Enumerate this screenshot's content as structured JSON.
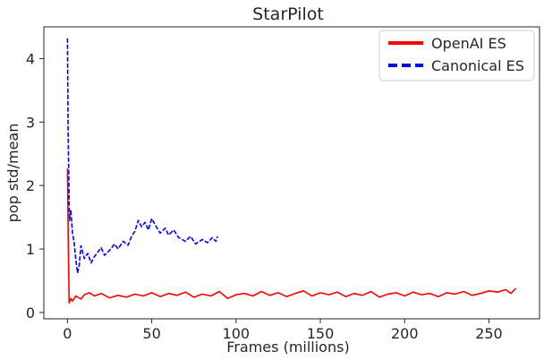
{
  "chart_data": {
    "type": "line",
    "title": "StarPilot",
    "xlabel": "Frames (millions)",
    "ylabel": "pop std/mean",
    "xlim": [
      -14,
      280
    ],
    "ylim": [
      -0.1,
      4.5
    ],
    "xticks": [
      0,
      50,
      100,
      150,
      200,
      250
    ],
    "yticks": [
      0,
      1,
      2,
      3,
      4
    ],
    "grid": false,
    "legend_position": "top-right",
    "series": [
      {
        "name": "OpenAI ES",
        "color": "#ff0000",
        "dash": "solid",
        "x": [
          0,
          0.3,
          0.6,
          1,
          2,
          3,
          5,
          8,
          10,
          13,
          16,
          20,
          25,
          30,
          35,
          40,
          45,
          50,
          55,
          60,
          65,
          70,
          75,
          80,
          85,
          90,
          95,
          100,
          105,
          110,
          115,
          120,
          125,
          130,
          135,
          140,
          145,
          150,
          155,
          160,
          165,
          170,
          175,
          180,
          185,
          190,
          195,
          200,
          205,
          210,
          215,
          220,
          225,
          230,
          235,
          240,
          245,
          250,
          255,
          260,
          263,
          266
        ],
        "y": [
          2.27,
          1.6,
          0.9,
          0.15,
          0.22,
          0.18,
          0.26,
          0.21,
          0.28,
          0.31,
          0.26,
          0.3,
          0.23,
          0.27,
          0.24,
          0.29,
          0.26,
          0.31,
          0.25,
          0.3,
          0.27,
          0.32,
          0.24,
          0.29,
          0.26,
          0.33,
          0.22,
          0.28,
          0.3,
          0.26,
          0.33,
          0.27,
          0.31,
          0.25,
          0.3,
          0.34,
          0.26,
          0.31,
          0.28,
          0.32,
          0.25,
          0.3,
          0.27,
          0.33,
          0.24,
          0.29,
          0.31,
          0.26,
          0.32,
          0.28,
          0.3,
          0.25,
          0.31,
          0.29,
          0.33,
          0.27,
          0.3,
          0.34,
          0.32,
          0.36,
          0.3,
          0.38
        ]
      },
      {
        "name": "Canonical ES",
        "color": "#0000ff",
        "dash": "dashed",
        "x": [
          0,
          0.4,
          0.8,
          1.2,
          2,
          3,
          4,
          5,
          6,
          7,
          8,
          10,
          12,
          14,
          16,
          18,
          20,
          22,
          25,
          28,
          30,
          33,
          36,
          38,
          40,
          42,
          44,
          46,
          48,
          50,
          52,
          55,
          58,
          60,
          63,
          66,
          70,
          73,
          76,
          80,
          83,
          86,
          88,
          89
        ],
        "y": [
          4.32,
          2.9,
          2.1,
          1.45,
          1.62,
          1.25,
          1.1,
          0.82,
          0.62,
          0.75,
          1.05,
          0.85,
          0.93,
          0.78,
          0.88,
          0.95,
          1.02,
          0.9,
          0.98,
          1.08,
          1.0,
          1.12,
          1.06,
          1.2,
          1.28,
          1.45,
          1.35,
          1.42,
          1.3,
          1.48,
          1.38,
          1.25,
          1.33,
          1.22,
          1.3,
          1.18,
          1.12,
          1.2,
          1.08,
          1.15,
          1.1,
          1.18,
          1.12,
          1.2
        ]
      }
    ]
  }
}
